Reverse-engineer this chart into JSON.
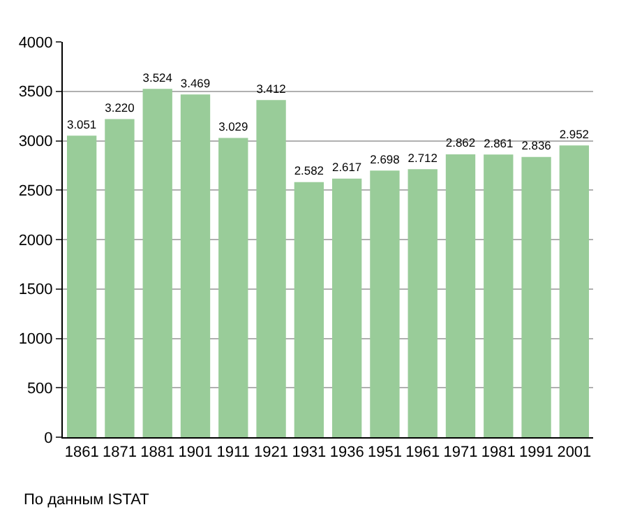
{
  "chart_data": {
    "type": "bar",
    "categories": [
      "1861",
      "1871",
      "1881",
      "1901",
      "1911",
      "1921",
      "1931",
      "1936",
      "1951",
      "1961",
      "1971",
      "1981",
      "1991",
      "2001"
    ],
    "values": [
      3051,
      3220,
      3524,
      3469,
      3029,
      3412,
      2582,
      2617,
      2698,
      2712,
      2862,
      2861,
      2836,
      2952
    ],
    "value_labels": [
      "3.051",
      "3.220",
      "3.524",
      "3.469",
      "3.029",
      "3.412",
      "2.582",
      "2.617",
      "2.698",
      "2.712",
      "2.862",
      "2.861",
      "2.836",
      "2.952"
    ],
    "color": "#99cc99",
    "ylim": [
      0,
      4000
    ],
    "yticks": [
      0,
      500,
      1000,
      1500,
      2000,
      2500,
      3000,
      3500,
      4000
    ],
    "grid": "y",
    "legend": false,
    "annotations": [
      "По данным ISTAT"
    ]
  }
}
